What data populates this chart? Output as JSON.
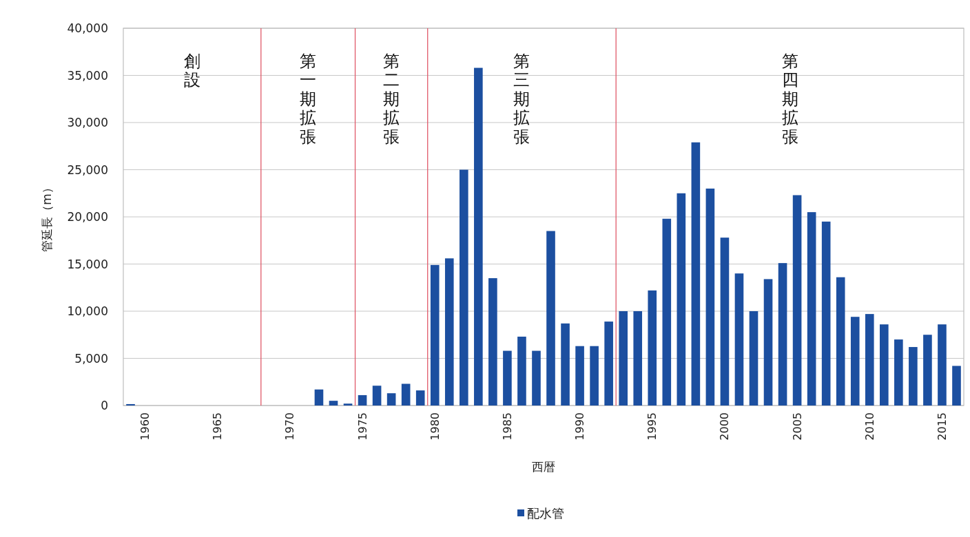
{
  "chart_data": {
    "type": "bar",
    "x": [
      1959,
      1972,
      1973,
      1974,
      1975,
      1976,
      1977,
      1978,
      1979,
      1980,
      1981,
      1982,
      1983,
      1984,
      1985,
      1986,
      1987,
      1988,
      1989,
      1990,
      1991,
      1992,
      1993,
      1994,
      1995,
      1996,
      1997,
      1998,
      1999,
      2000,
      2001,
      2002,
      2003,
      2004,
      2005,
      2006,
      2007,
      2008,
      2009,
      2010,
      2011,
      2012,
      2013,
      2014,
      2015,
      2016
    ],
    "series": [
      {
        "name": "配水管",
        "color": "#1c4fa0",
        "values": [
          150,
          1700,
          500,
          200,
          1100,
          2100,
          1300,
          2300,
          1600,
          14900,
          15600,
          25000,
          35800,
          13500,
          5800,
          7300,
          5800,
          18500,
          8700,
          6300,
          6300,
          8900,
          10000,
          10000,
          12200,
          19800,
          22500,
          27900,
          23000,
          17800,
          14000,
          10000,
          13400,
          15100,
          22300,
          20500,
          19500,
          13600,
          9400,
          9700,
          8600,
          7000,
          6200,
          7500,
          8600,
          4200
        ]
      }
    ],
    "xlim": [
      1958.5,
      2016.5
    ],
    "xticks": [
      1960,
      1965,
      1970,
      1975,
      1980,
      1985,
      1990,
      1995,
      2000,
      2005,
      2010,
      2015
    ],
    "ylim": [
      0,
      40000
    ],
    "yticks": [
      0,
      {
        "value": 5000,
        "label": "5,000"
      },
      {
        "value": 10000,
        "label": "10,000"
      },
      {
        "value": 15000,
        "label": "15,000"
      },
      {
        "value": 20000,
        "label": "20,000"
      },
      {
        "value": 25000,
        "label": "25,000"
      },
      {
        "value": 30000,
        "label": "30,000"
      },
      {
        "value": 35000,
        "label": "35,000"
      },
      {
        "value": 40000,
        "label": "40,000"
      }
    ],
    "xlabel": "西暦",
    "ylabel": "管延長（m）",
    "grid": "y",
    "legend": "bottom",
    "ref_lines": [
      {
        "axis": "x",
        "value": 1968,
        "color": "#e05a6a"
      },
      {
        "axis": "x",
        "value": 1974.5,
        "color": "#e05a6a"
      },
      {
        "axis": "x",
        "value": 1979.5,
        "color": "#e05a6a"
      },
      {
        "axis": "x",
        "value": 1992.5,
        "color": "#e05a6a"
      }
    ],
    "annotations": [
      "創設",
      "第一期拡張",
      "第二期拡張",
      "第三期拡張",
      "第四期拡張"
    ]
  }
}
